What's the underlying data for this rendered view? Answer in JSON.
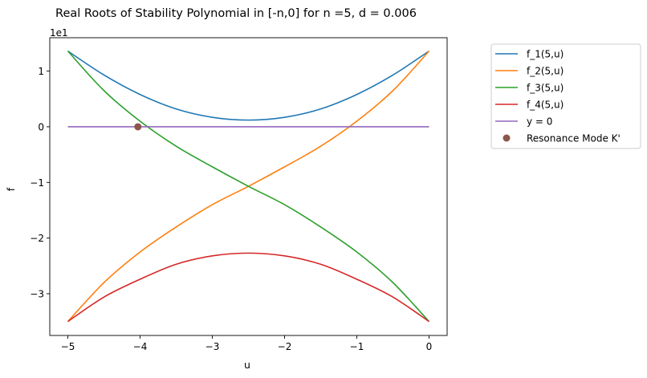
{
  "chart_data": {
    "type": "line",
    "title": "Real Roots of Stability Polynomial in [-n,0] for n =5, d = 0.006",
    "xlabel": "u",
    "ylabel": "f",
    "y_offset_label": "1e1",
    "xlim": [
      -5.25,
      0.25
    ],
    "ylim": [
      -3.75,
      1.6
    ],
    "x_ticks": [
      -5,
      -4,
      -3,
      -2,
      -1,
      0
    ],
    "x_tick_labels": [
      "−5",
      "−4",
      "−3",
      "−2",
      "−1",
      "0"
    ],
    "y_ticks": [
      1,
      0,
      -1,
      -2,
      -3
    ],
    "y_tick_labels": [
      "1",
      "0",
      "−1",
      "−2",
      "−3"
    ],
    "grid": false,
    "legend_position": "outside-right",
    "series": [
      {
        "name": "f_1(5,u)",
        "color": "#1f77b4",
        "x": [
          -5,
          -4.5,
          -4,
          -3.5,
          -3,
          -2.5,
          -2,
          -1.5,
          -1,
          -0.5,
          0
        ],
        "y": [
          1.36,
          0.93,
          0.58,
          0.32,
          0.17,
          0.12,
          0.17,
          0.32,
          0.58,
          0.93,
          1.36
        ]
      },
      {
        "name": "f_2(5,u)",
        "color": "#ff7f0e",
        "x": [
          -5,
          -4.5,
          -4,
          -3.5,
          -3,
          -2.5,
          -2,
          -1.5,
          -1,
          -0.5,
          0
        ],
        "y": [
          -3.5,
          -2.8,
          -2.25,
          -1.8,
          -1.4,
          -1.07,
          -0.72,
          -0.35,
          0.1,
          0.65,
          1.36
        ]
      },
      {
        "name": "f_3(5,u)",
        "color": "#2ca02c",
        "x": [
          -5,
          -4.5,
          -4,
          -3.5,
          -3,
          -2.5,
          -2,
          -1.5,
          -1,
          -0.5,
          0
        ],
        "y": [
          1.36,
          0.65,
          0.1,
          -0.35,
          -0.72,
          -1.07,
          -1.4,
          -1.8,
          -2.25,
          -2.8,
          -3.5
        ]
      },
      {
        "name": "f_4(5,u)",
        "color": "#d62728",
        "x": [
          -5,
          -4.5,
          -4,
          -3.5,
          -3,
          -2.5,
          -2,
          -1.5,
          -1,
          -0.5,
          0
        ],
        "y": [
          -3.5,
          -3.06,
          -2.74,
          -2.47,
          -2.32,
          -2.27,
          -2.32,
          -2.47,
          -2.74,
          -3.06,
          -3.5
        ]
      },
      {
        "name": "y = 0",
        "color": "#9467bd",
        "x": [
          -5,
          0
        ],
        "y": [
          0,
          0
        ]
      }
    ],
    "points": [
      {
        "name": "Resonance Mode K'",
        "color": "#8c564b",
        "x": -4.03,
        "y": 0
      }
    ]
  }
}
